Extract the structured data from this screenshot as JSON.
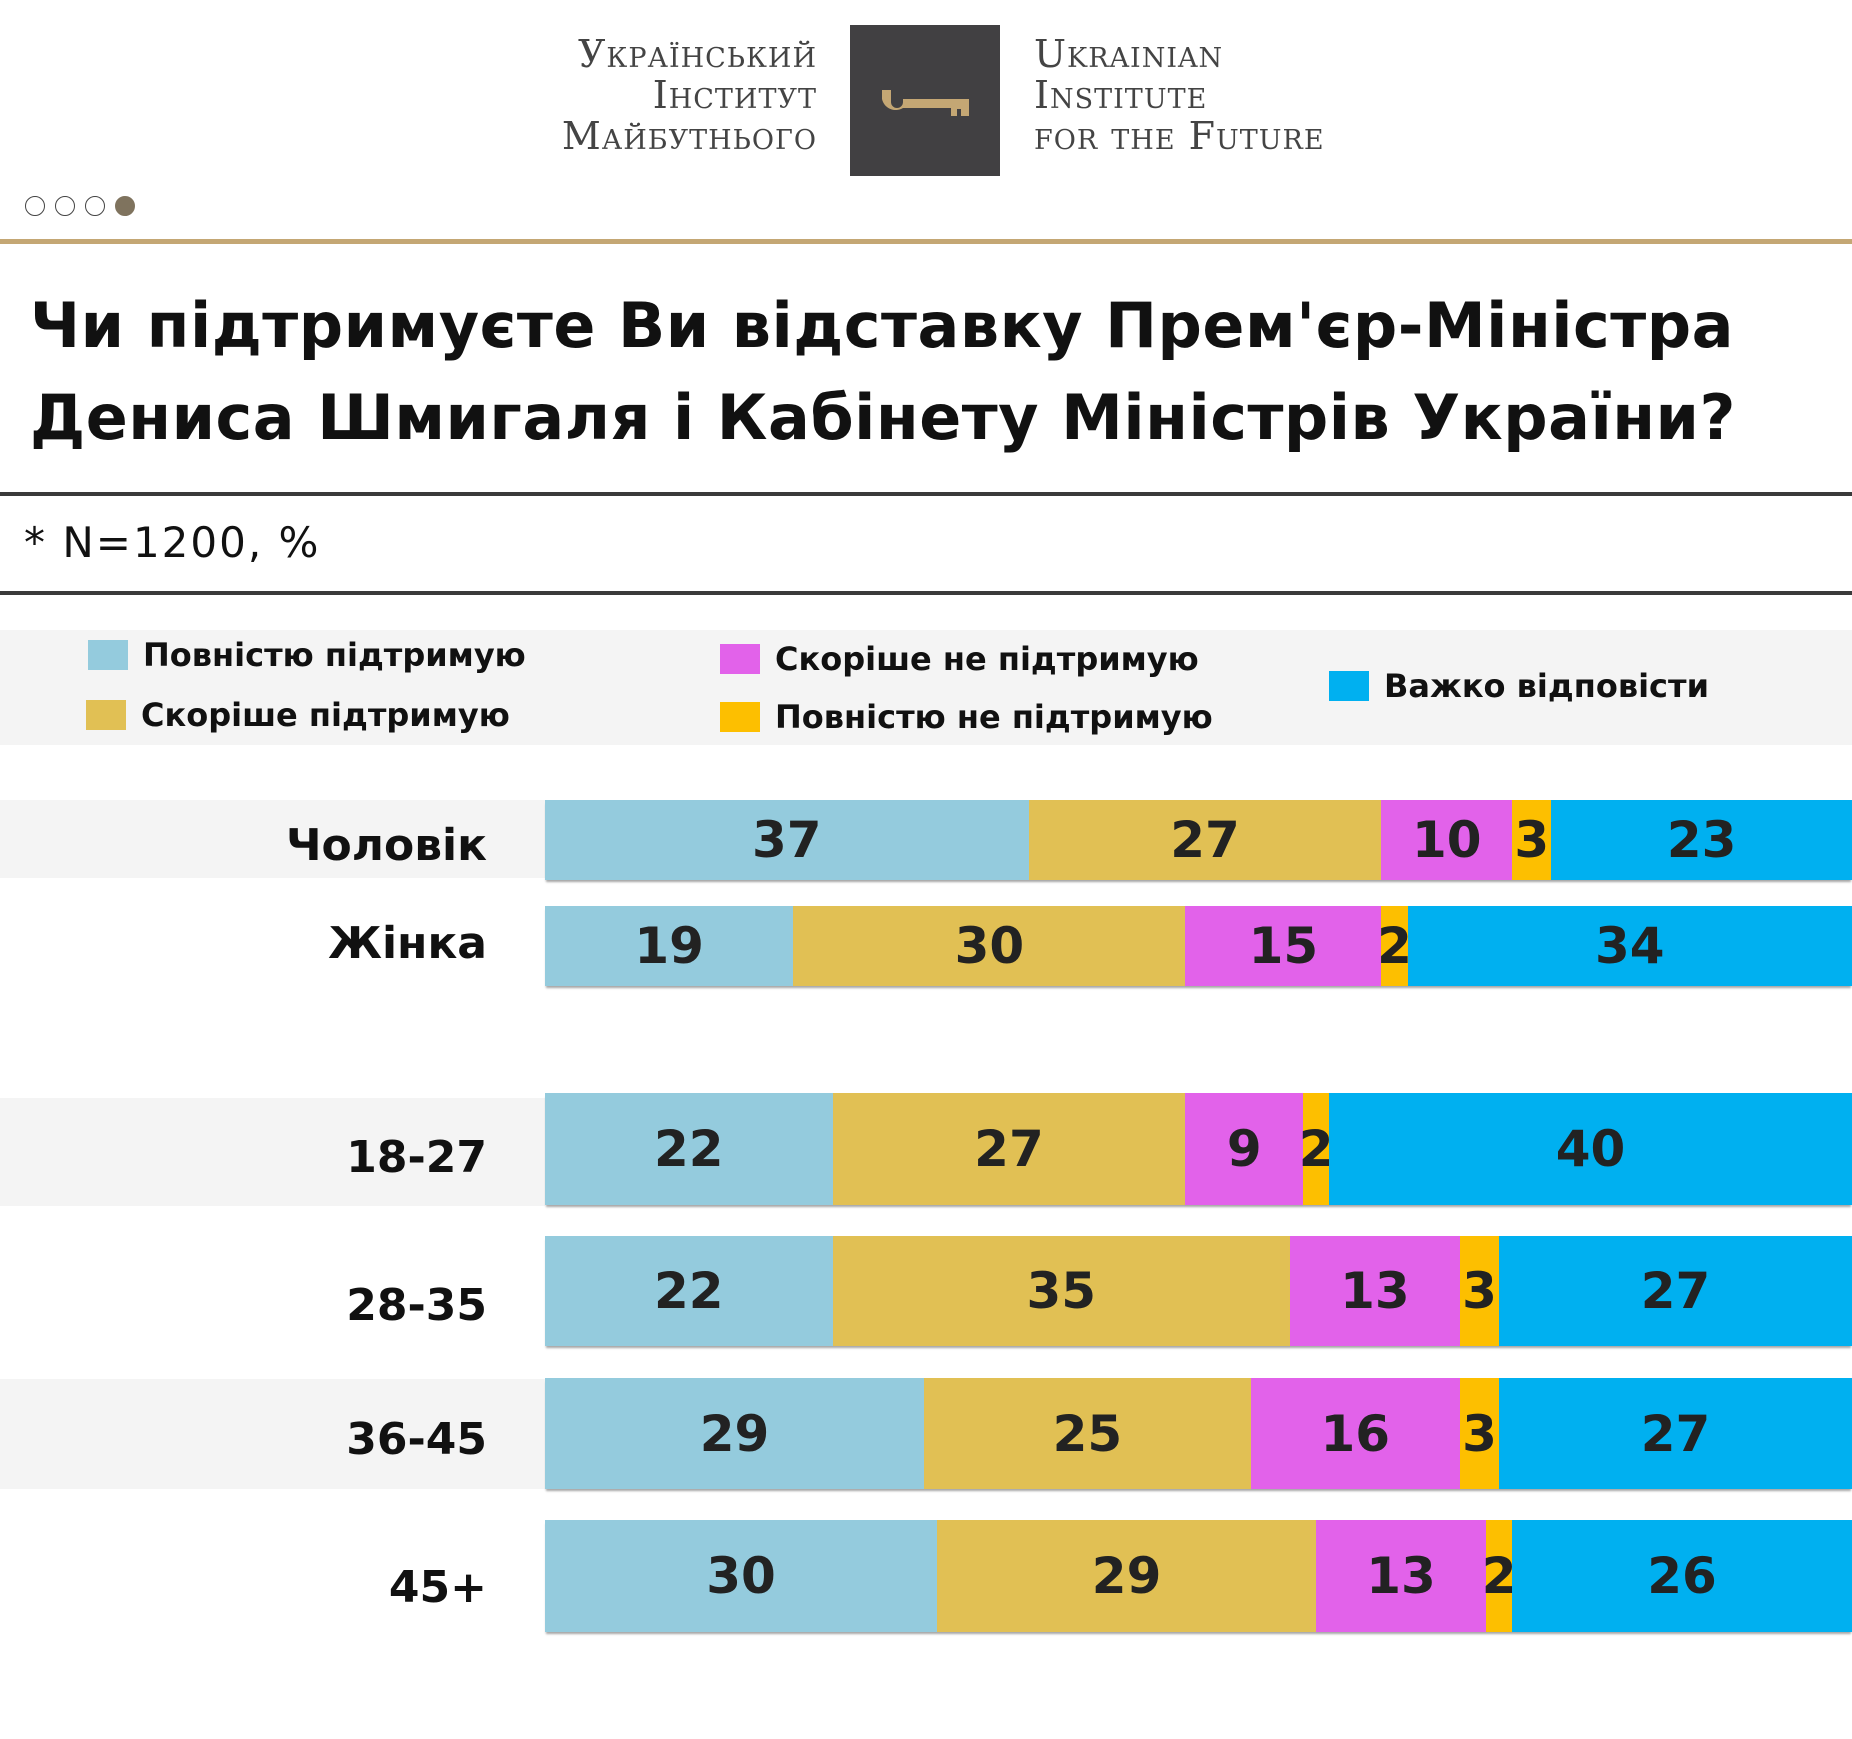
{
  "header": {
    "logo_ua_lines": [
      "Український",
      "Інститут",
      "Майбутнього"
    ],
    "logo_en_lines": [
      "Ukrainian",
      "Institute",
      "for the Future"
    ],
    "logo_icon": "key-icon",
    "pagination": {
      "total": 4,
      "active": 4
    }
  },
  "title_lines": [
    "Чи підтримуєте Ви відставку Прем'єр-Міністра",
    "Дениса Шмигаля і Кабінету Міністрів України?"
  ],
  "subtitle": "* N=1200, %",
  "colors": {
    "gold_line": "#c4a774",
    "dark_line": "#3a3a3a",
    "band": "#f4f4f4"
  },
  "chart_data": {
    "type": "bar",
    "orientation": "horizontal",
    "stacked": true,
    "title": "Чи підтримуєте Ви відставку Прем'єр-Міністра Дениса Шмигаля і Кабінету Міністрів України?",
    "note": "* N=1200, %",
    "xlabel": "",
    "ylabel": "",
    "xlim": [
      0,
      100
    ],
    "legend_position": "top",
    "categories": [
      "Чоловік",
      "Жінка",
      "18-27",
      "28-35",
      "36-45",
      "45+"
    ],
    "series": [
      {
        "name": "Повністю підтримую",
        "color": "#94cbdd",
        "values": [
          37,
          19,
          22,
          22,
          29,
          30
        ]
      },
      {
        "name": "Скоріше підтримую",
        "color": "#e1c054",
        "values": [
          27,
          30,
          27,
          35,
          25,
          29
        ]
      },
      {
        "name": "Скоріше не підтримую",
        "color": "#e262ea",
        "values": [
          10,
          15,
          9,
          13,
          16,
          13
        ]
      },
      {
        "name": "Повністю не підтримую",
        "color": "#fdbf00",
        "values": [
          3,
          2,
          2,
          3,
          3,
          2
        ]
      },
      {
        "name": "Важко відповісти",
        "color": "#00b0f0",
        "values": [
          23,
          34,
          40,
          27,
          27,
          26
        ]
      }
    ]
  }
}
